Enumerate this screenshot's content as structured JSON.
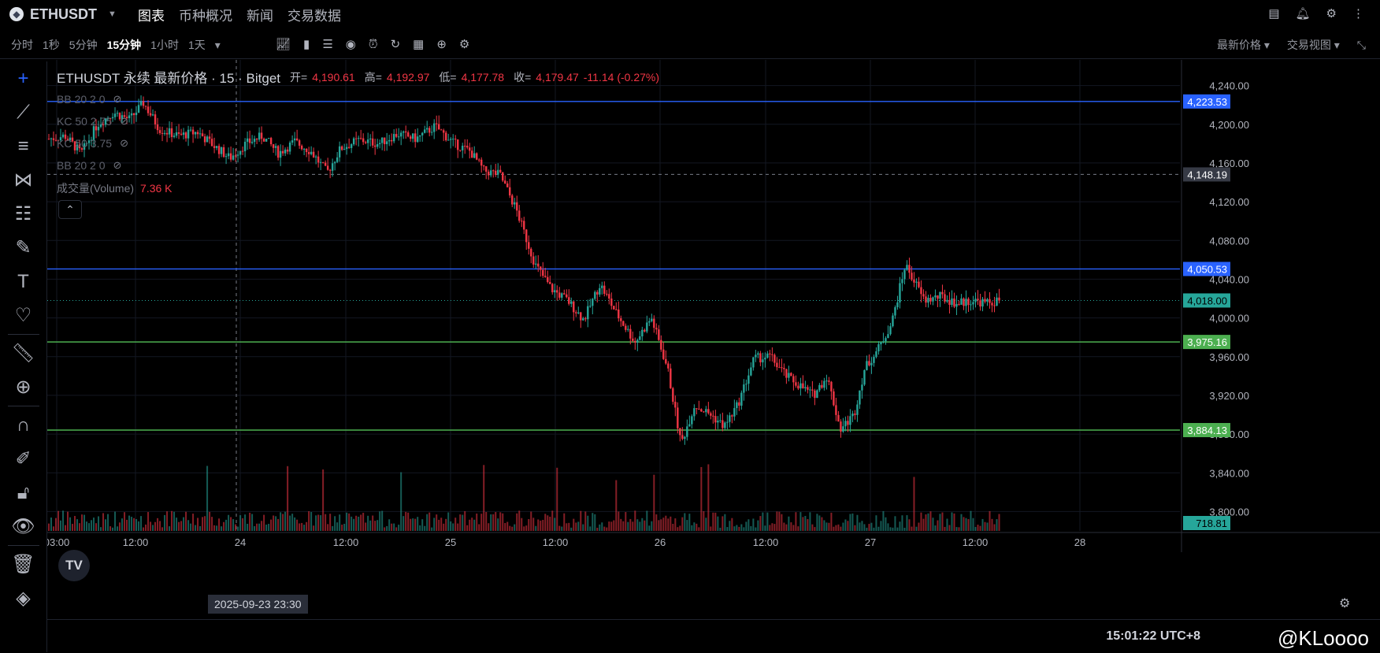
{
  "header": {
    "symbol": "ETHUSDT",
    "tabs": [
      "图表",
      "币种概况",
      "新闻",
      "交易数据"
    ],
    "active_tab": "图表"
  },
  "toolbar": {
    "intervals": [
      "分时",
      "1秒",
      "5分钟",
      "15分钟",
      "1小时",
      "1天"
    ],
    "active_interval": "15分钟",
    "price_menu": "最新价格",
    "view_menu": "交易视图"
  },
  "legend": {
    "title": "ETHUSDT 永续 最新价格 · 15 · Bitget",
    "open_label": "开=",
    "open": "4,190.61",
    "high_label": "高=",
    "high": "4,192.97",
    "low_label": "低=",
    "low": "4,177.78",
    "close_label": "收=",
    "close": "4,179.47",
    "change": "-11.14 (-0.27%)"
  },
  "indicators": [
    "BB 20 2 0",
    "KC 50 2.75",
    "KC 50 3.75",
    "BB 20 2 0"
  ],
  "volume": {
    "label": "成交量(Volume)",
    "value": "7.36 K"
  },
  "x_badge": "2025-09-23   23:30",
  "status": {
    "clock": "15:01:22 UTC+8",
    "watermark": "@KLoooo"
  },
  "colors": {
    "up": "#26a69a",
    "down": "#f23645",
    "blue_line": "#2962ff",
    "green_line": "#4caf50"
  },
  "chart_data": {
    "type": "candlestick",
    "ylim": [
      3780,
      4260
    ],
    "y_ticks": [
      3800,
      3840,
      3880,
      3920,
      3960,
      4000,
      4040,
      4080,
      4120,
      4160,
      4200,
      4240
    ],
    "y_tick_labels": [
      "3,800.00",
      "3,840.00",
      "3,880.00",
      "3,920.00",
      "3,960.00",
      "4,000.00",
      "4,040.00",
      "4,080.00",
      "4,120.00",
      "4,160.00",
      "4,200.00",
      "4,240.00"
    ],
    "x_tick_labels": [
      "03:00",
      "12:00",
      "24",
      "12:00",
      "25",
      "12:00",
      "26",
      "12:00",
      "27",
      "12:00",
      "28"
    ],
    "horizontal_lines": [
      {
        "price": 4223.53,
        "label": "4,223.53",
        "color": "#2962ff"
      },
      {
        "price": 4050.53,
        "label": "4,050.53",
        "color": "#2962ff"
      },
      {
        "price": 3975.16,
        "label": "3,975.16",
        "color": "#4caf50"
      },
      {
        "price": 3884.13,
        "label": "3,884.13",
        "color": "#4caf50"
      }
    ],
    "crosshair_price": {
      "price": 4148.19,
      "label": "4,148.19"
    },
    "last_price": {
      "price": 4018.0,
      "label": "4,018.00"
    },
    "volume_label": "718.81",
    "price_path": [
      [
        0,
        4185
      ],
      [
        12,
        4188
      ],
      [
        24,
        4170
      ],
      [
        36,
        4200
      ],
      [
        48,
        4212
      ],
      [
        60,
        4205
      ],
      [
        70,
        4222
      ],
      [
        82,
        4195
      ],
      [
        96,
        4188
      ],
      [
        110,
        4192
      ],
      [
        122,
        4178
      ],
      [
        134,
        4165
      ],
      [
        146,
        4180
      ],
      [
        158,
        4188
      ],
      [
        170,
        4170
      ],
      [
        182,
        4182
      ],
      [
        194,
        4172
      ],
      [
        206,
        4150
      ],
      [
        216,
        4175
      ],
      [
        230,
        4184
      ],
      [
        244,
        4180
      ],
      [
        258,
        4190
      ],
      [
        272,
        4185
      ],
      [
        286,
        4198
      ],
      [
        300,
        4180
      ],
      [
        312,
        4172
      ],
      [
        322,
        4152
      ],
      [
        334,
        4148
      ],
      [
        346,
        4112
      ],
      [
        360,
        4055
      ],
      [
        372,
        4030
      ],
      [
        384,
        4018
      ],
      [
        396,
        3998
      ],
      [
        408,
        4035
      ],
      [
        420,
        4005
      ],
      [
        434,
        3975
      ],
      [
        446,
        4000
      ],
      [
        458,
        3948
      ],
      [
        468,
        3870
      ],
      [
        478,
        3910
      ],
      [
        490,
        3900
      ],
      [
        500,
        3888
      ],
      [
        510,
        3910
      ],
      [
        522,
        3958
      ],
      [
        534,
        3960
      ],
      [
        546,
        3940
      ],
      [
        556,
        3930
      ],
      [
        566,
        3920
      ],
      [
        576,
        3940
      ],
      [
        586,
        3885
      ],
      [
        596,
        3900
      ],
      [
        604,
        3948
      ],
      [
        614,
        3968
      ],
      [
        624,
        3995
      ],
      [
        634,
        4055
      ],
      [
        640,
        4040
      ],
      [
        648,
        4018
      ],
      [
        660,
        4022
      ],
      [
        672,
        4015
      ],
      [
        684,
        4018
      ],
      [
        696,
        4015
      ],
      [
        704,
        4018
      ]
    ]
  }
}
